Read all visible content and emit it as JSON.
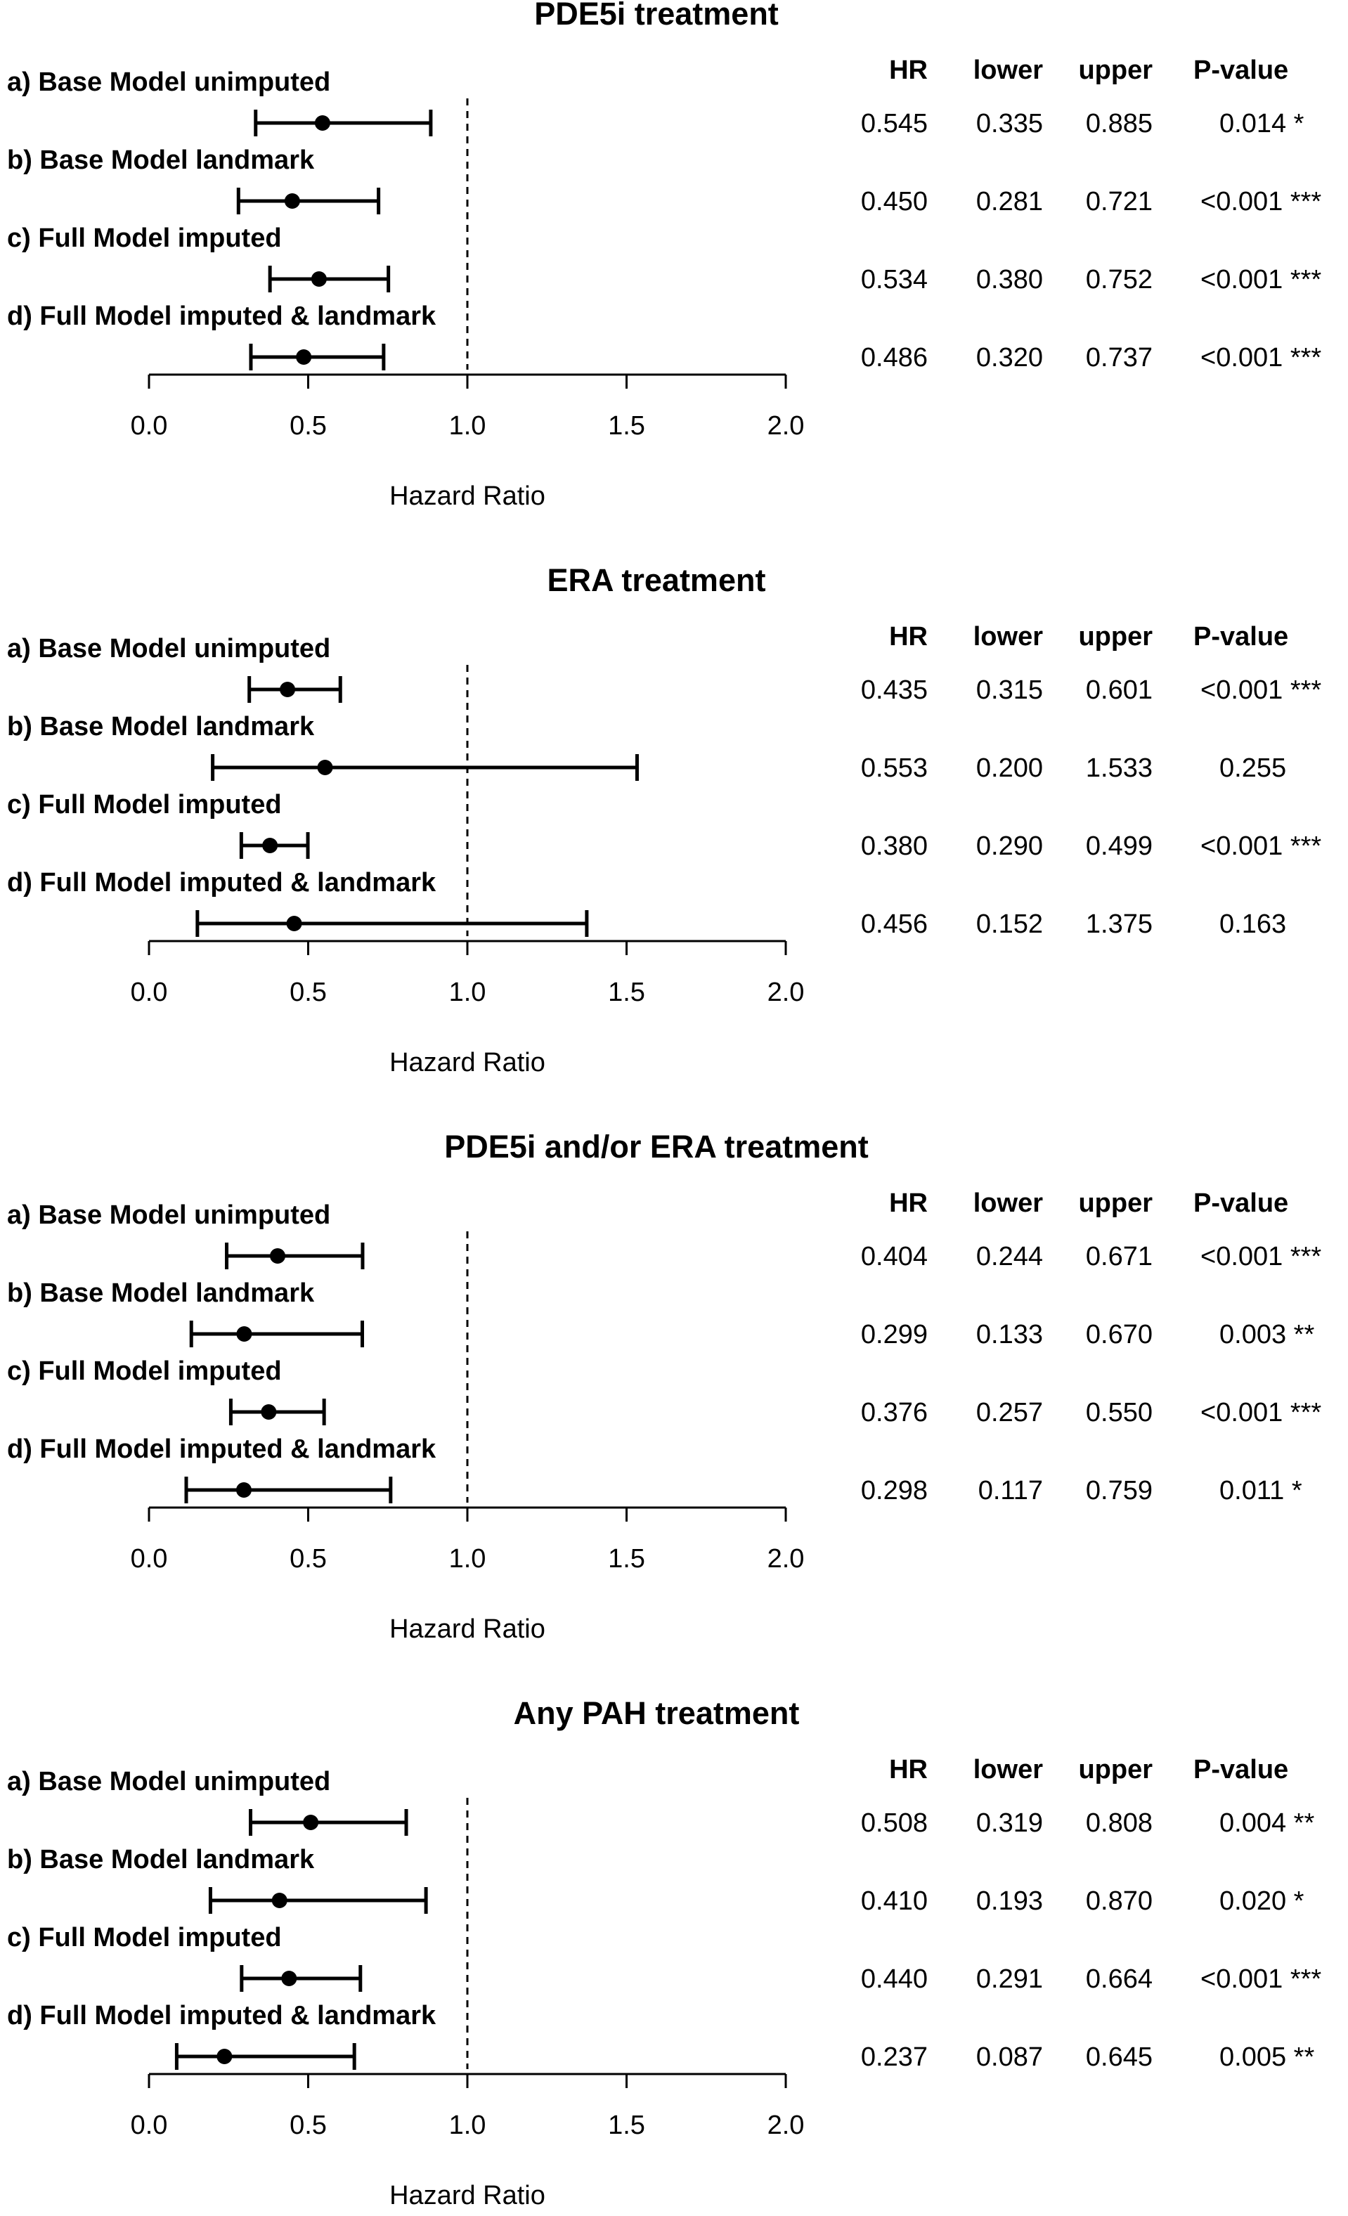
{
  "chart_data": [
    {
      "type": "forest",
      "title": "PDE5i treatment",
      "xlabel": "Hazard Ratio",
      "xlim": [
        0.0,
        2.0
      ],
      "xticks": [
        "0.0",
        "0.5",
        "1.0",
        "1.5",
        "2.0"
      ],
      "reference_line": 1.0,
      "columns": [
        "HR",
        "lower",
        "upper",
        "P-value"
      ],
      "rows": [
        {
          "label": "a) Base Model unimputed",
          "hr": 0.545,
          "lower": 0.335,
          "upper": 0.885,
          "hr_text": "0.545",
          "lower_text": "0.335",
          "upper_text": "0.885",
          "p": "0.014 *"
        },
        {
          "label": "b) Base Model landmark",
          "hr": 0.45,
          "lower": 0.281,
          "upper": 0.721,
          "hr_text": "0.450",
          "lower_text": "0.281",
          "upper_text": "0.721",
          "p": "<0.001 ***"
        },
        {
          "label": "c) Full Model imputed",
          "hr": 0.534,
          "lower": 0.38,
          "upper": 0.752,
          "hr_text": "0.534",
          "lower_text": "0.380",
          "upper_text": "0.752",
          "p": "<0.001 ***"
        },
        {
          "label": "d) Full Model imputed & landmark",
          "hr": 0.486,
          "lower": 0.32,
          "upper": 0.737,
          "hr_text": "0.486",
          "lower_text": "0.320",
          "upper_text": "0.737",
          "p": "<0.001 ***"
        }
      ]
    },
    {
      "type": "forest",
      "title": "ERA treatment",
      "xlabel": "Hazard Ratio",
      "xlim": [
        0.0,
        2.0
      ],
      "xticks": [
        "0.0",
        "0.5",
        "1.0",
        "1.5",
        "2.0"
      ],
      "reference_line": 1.0,
      "columns": [
        "HR",
        "lower",
        "upper",
        "P-value"
      ],
      "rows": [
        {
          "label": "a) Base Model unimputed",
          "hr": 0.435,
          "lower": 0.315,
          "upper": 0.601,
          "hr_text": "0.435",
          "lower_text": "0.315",
          "upper_text": "0.601",
          "p": "<0.001 ***"
        },
        {
          "label": "b) Base Model landmark",
          "hr": 0.553,
          "lower": 0.2,
          "upper": 1.533,
          "hr_text": "0.553",
          "lower_text": "0.200",
          "upper_text": "1.533",
          "p": "0.255"
        },
        {
          "label": "c) Full Model imputed",
          "hr": 0.38,
          "lower": 0.29,
          "upper": 0.499,
          "hr_text": "0.380",
          "lower_text": "0.290",
          "upper_text": "0.499",
          "p": "<0.001 ***"
        },
        {
          "label": "d) Full Model imputed & landmark",
          "hr": 0.456,
          "lower": 0.152,
          "upper": 1.375,
          "hr_text": "0.456",
          "lower_text": "0.152",
          "upper_text": "1.375",
          "p": "0.163"
        }
      ]
    },
    {
      "type": "forest",
      "title": "PDE5i and/or ERA treatment",
      "xlabel": "Hazard Ratio",
      "xlim": [
        0.0,
        2.0
      ],
      "xticks": [
        "0.0",
        "0.5",
        "1.0",
        "1.5",
        "2.0"
      ],
      "reference_line": 1.0,
      "columns": [
        "HR",
        "lower",
        "upper",
        "P-value"
      ],
      "rows": [
        {
          "label": "a) Base Model unimputed",
          "hr": 0.404,
          "lower": 0.244,
          "upper": 0.671,
          "hr_text": "0.404",
          "lower_text": "0.244",
          "upper_text": "0.671",
          "p": "<0.001 ***"
        },
        {
          "label": "b) Base Model landmark",
          "hr": 0.299,
          "lower": 0.133,
          "upper": 0.67,
          "hr_text": "0.299",
          "lower_text": "0.133",
          "upper_text": "0.670",
          "p": "0.003 **"
        },
        {
          "label": "c) Full Model imputed",
          "hr": 0.376,
          "lower": 0.257,
          "upper": 0.55,
          "hr_text": "0.376",
          "lower_text": "0.257",
          "upper_text": "0.550",
          "p": "<0.001 ***"
        },
        {
          "label": "d) Full Model imputed & landmark",
          "hr": 0.298,
          "lower": 0.117,
          "upper": 0.759,
          "hr_text": "0.298",
          "lower_text": "0.117",
          "upper_text": "0.759",
          "p": "0.011 *"
        }
      ]
    },
    {
      "type": "forest",
      "title": "Any PAH treatment",
      "xlabel": "Hazard Ratio",
      "xlim": [
        0.0,
        2.0
      ],
      "xticks": [
        "0.0",
        "0.5",
        "1.0",
        "1.5",
        "2.0"
      ],
      "reference_line": 1.0,
      "columns": [
        "HR",
        "lower",
        "upper",
        "P-value"
      ],
      "rows": [
        {
          "label": "a) Base Model unimputed",
          "hr": 0.508,
          "lower": 0.319,
          "upper": 0.808,
          "hr_text": "0.508",
          "lower_text": "0.319",
          "upper_text": "0.808",
          "p": "0.004 **"
        },
        {
          "label": "b) Base Model landmark",
          "hr": 0.41,
          "lower": 0.193,
          "upper": 0.87,
          "hr_text": "0.410",
          "lower_text": "0.193",
          "upper_text": "0.870",
          "p": "0.020 *"
        },
        {
          "label": "c) Full Model imputed",
          "hr": 0.44,
          "lower": 0.291,
          "upper": 0.664,
          "hr_text": "0.440",
          "lower_text": "0.291",
          "upper_text": "0.664",
          "p": "<0.001 ***"
        },
        {
          "label": "d) Full Model imputed & landmark",
          "hr": 0.237,
          "lower": 0.087,
          "upper": 0.645,
          "hr_text": "0.237",
          "lower_text": "0.087",
          "upper_text": "0.645",
          "p": "0.005 **"
        }
      ]
    }
  ]
}
